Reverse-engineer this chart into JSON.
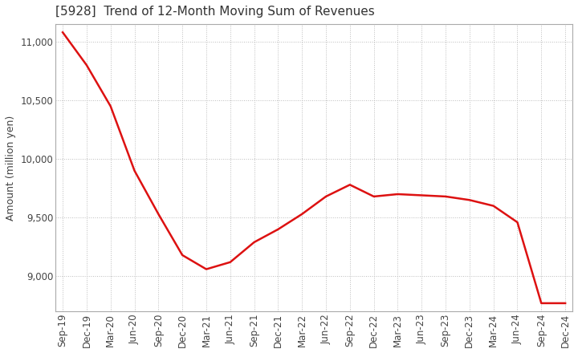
{
  "title": "[5928]  Trend of 12-Month Moving Sum of Revenues",
  "ylabel": "Amount (million yen)",
  "background_color": "#ffffff",
  "grid_color": "#bbbbbb",
  "line_color": "#dd1111",
  "x_labels": [
    "Sep-19",
    "Dec-19",
    "Mar-20",
    "Jun-20",
    "Sep-20",
    "Dec-20",
    "Mar-21",
    "Jun-21",
    "Sep-21",
    "Dec-21",
    "Mar-22",
    "Jun-22",
    "Sep-22",
    "Dec-22",
    "Mar-23",
    "Jun-23",
    "Sep-23",
    "Dec-23",
    "Mar-24",
    "Jun-24",
    "Sep-24",
    "Dec-24"
  ],
  "y_values": [
    11080,
    10800,
    10450,
    9900,
    9530,
    9180,
    9060,
    9120,
    9290,
    9400,
    9530,
    9680,
    9780,
    9680,
    9700,
    9690,
    9680,
    9650,
    9600,
    9460,
    8770,
    8770
  ],
  "ylim": [
    8700,
    11150
  ],
  "yticks": [
    9000,
    9500,
    10000,
    10500,
    11000
  ],
  "title_fontsize": 11,
  "label_fontsize": 9,
  "tick_fontsize": 8.5
}
